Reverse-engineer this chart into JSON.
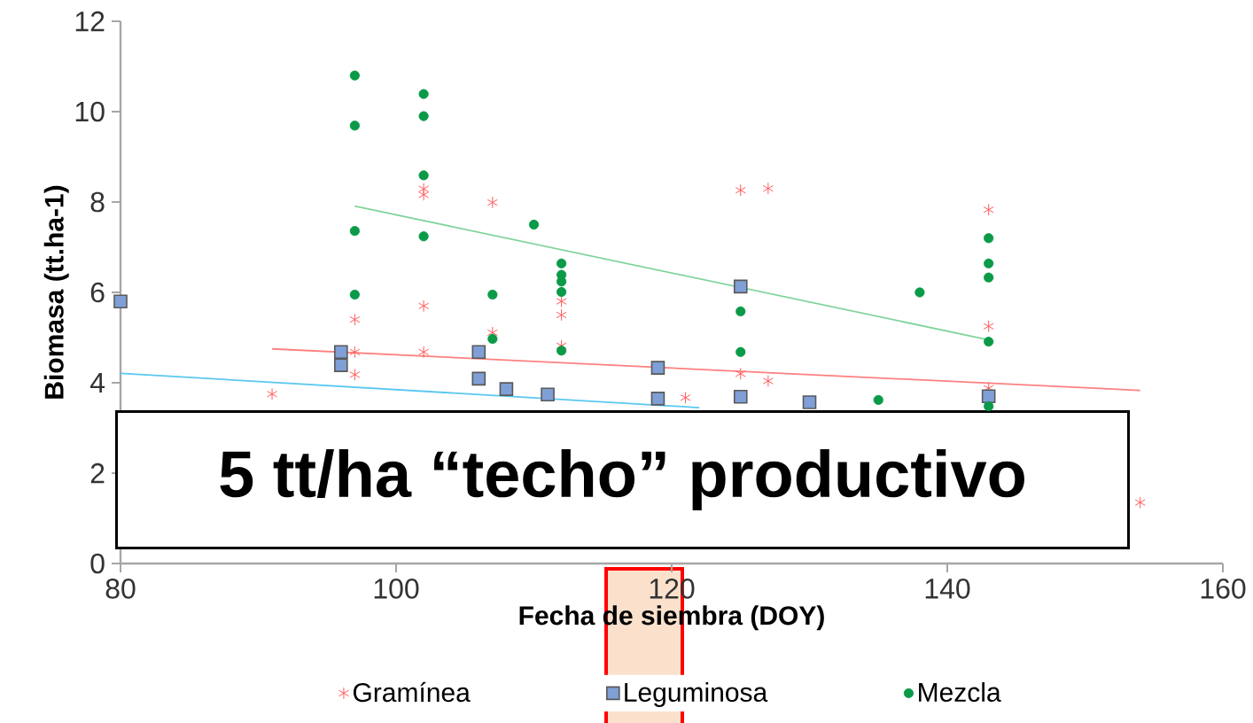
{
  "chart_data": {
    "type": "scatter",
    "xlabel": "Fecha de siembra (DOY)",
    "ylabel": "Biomasa (tt.ha-1)",
    "xlim": [
      80,
      160
    ],
    "ylim": [
      0,
      12
    ],
    "xticks": [
      80,
      100,
      120,
      140,
      160
    ],
    "yticks": [
      0,
      2,
      4,
      6,
      8,
      10,
      12
    ],
    "grid": false,
    "legend": "bottom",
    "annotations": [
      "5 tt/ha “techo” productivo"
    ],
    "series": [
      {
        "name": "Gramínea",
        "color": "#ff5a5a",
        "marker": "cross",
        "x": [
          91,
          97,
          97,
          97,
          102,
          102,
          102,
          102,
          107,
          107,
          112,
          112,
          112,
          121,
          125,
          125,
          127,
          127,
          143,
          143,
          143,
          154
        ],
        "values": [
          3.75,
          5.4,
          4.68,
          4.18,
          8.29,
          8.16,
          5.7,
          4.68,
          7.99,
          5.11,
          5.8,
          5.5,
          4.82,
          3.67,
          8.26,
          4.2,
          8.3,
          4.04,
          7.83,
          5.25,
          3.88,
          1.35
        ]
      },
      {
        "name": "Leguminosa",
        "color": "#7f9fd6",
        "marker": "square",
        "x": [
          80,
          96,
          96,
          106,
          106,
          108,
          111,
          119,
          119,
          125,
          125,
          130,
          143
        ],
        "values": [
          5.8,
          4.68,
          4.39,
          4.68,
          4.09,
          3.86,
          3.74,
          4.33,
          3.65,
          6.13,
          3.69,
          3.57,
          3.7
        ]
      },
      {
        "name": "Mezcla",
        "color": "#0a9a48",
        "marker": "circle",
        "x": [
          97,
          97,
          97,
          97,
          102,
          102,
          102,
          102,
          107,
          107,
          110,
          112,
          112,
          112,
          112,
          112,
          125,
          125,
          135,
          138,
          143,
          143,
          143,
          143,
          143
        ],
        "values": [
          10.8,
          9.69,
          7.36,
          5.95,
          10.39,
          9.9,
          8.59,
          7.24,
          5.95,
          4.97,
          7.5,
          6.64,
          6.39,
          6.24,
          6.01,
          4.71,
          5.58,
          4.68,
          3.62,
          6.0,
          7.2,
          6.64,
          6.33,
          4.91,
          3.48
        ]
      },
      {
        "type": "line",
        "color": "#ff8080",
        "marker": "none",
        "x": [
          91,
          154
        ],
        "values": [
          4.75,
          3.83
        ]
      },
      {
        "type": "line",
        "color": "#5ac8f0",
        "marker": "none",
        "x": [
          80,
          122
        ],
        "values": [
          4.21,
          3.45
        ]
      },
      {
        "type": "line",
        "color": "#80d49c",
        "marker": "none",
        "x": [
          97,
          143
        ],
        "values": [
          7.91,
          4.95
        ]
      }
    ]
  }
}
